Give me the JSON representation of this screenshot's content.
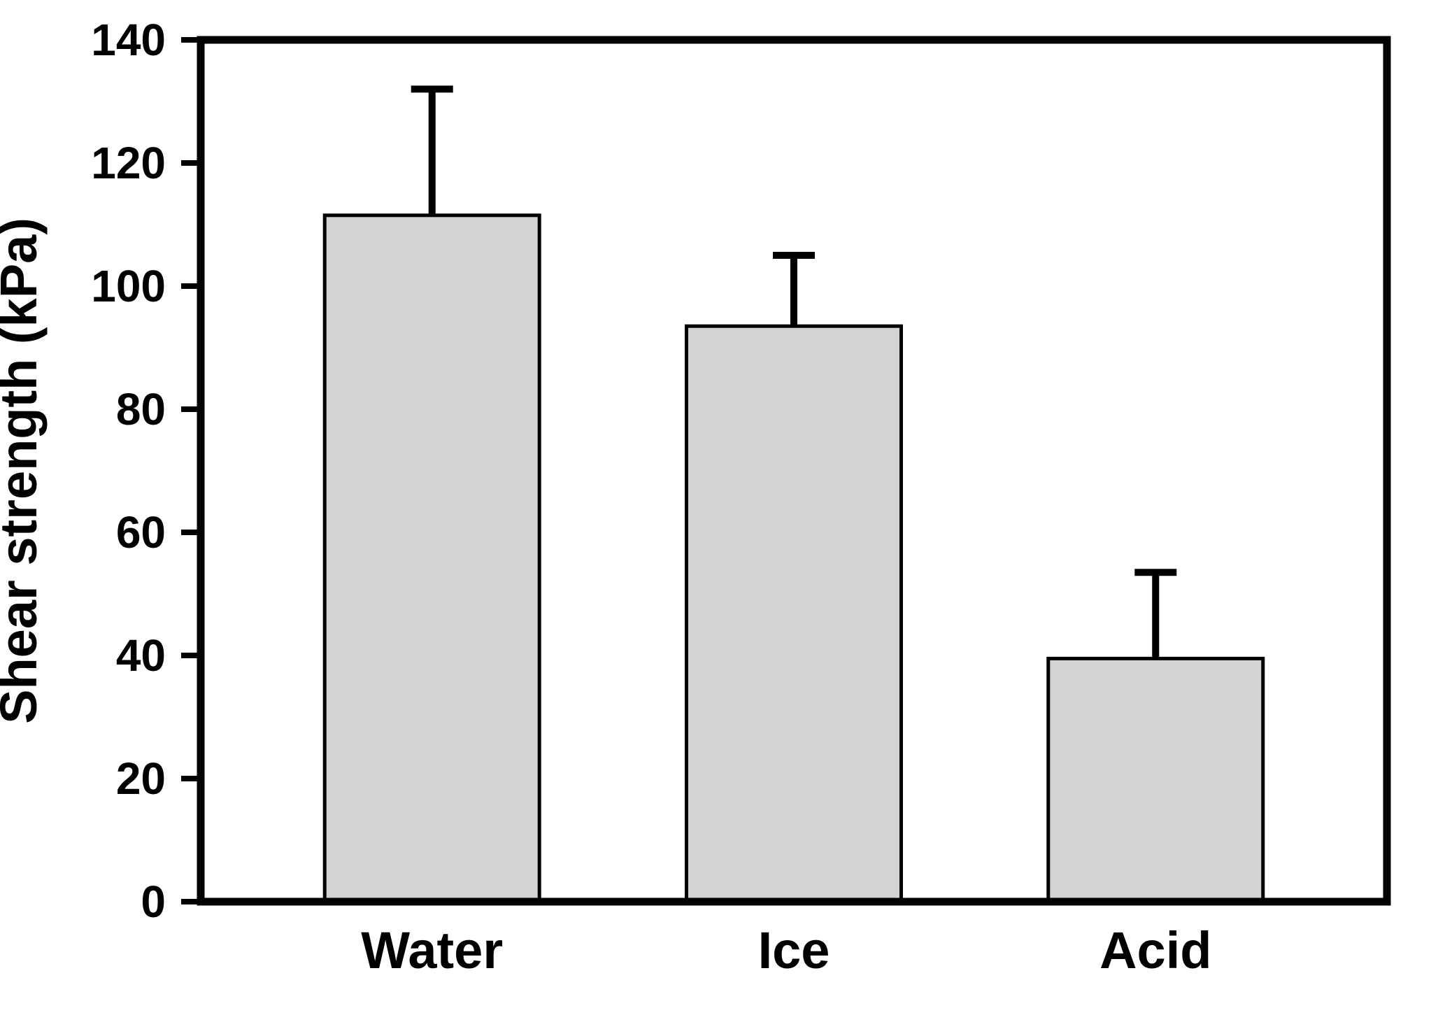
{
  "chart_data": {
    "type": "bar",
    "categories": [
      "Water",
      "Ice",
      "Acid"
    ],
    "values": [
      111.5,
      93.5,
      39.5
    ],
    "errors_upper": [
      20.5,
      11.5,
      14
    ],
    "title": "",
    "xlabel": "",
    "ylabel": "Shear strength (kPa)",
    "ylim": [
      0,
      140
    ],
    "yticks": [
      0,
      20,
      40,
      60,
      80,
      100,
      120,
      140
    ],
    "grid": false,
    "legend": "none",
    "colors": {
      "bar_fill": "#d3d3d3",
      "bar_stroke": "#000000",
      "axis": "#000000",
      "background": "#ffffff"
    }
  }
}
